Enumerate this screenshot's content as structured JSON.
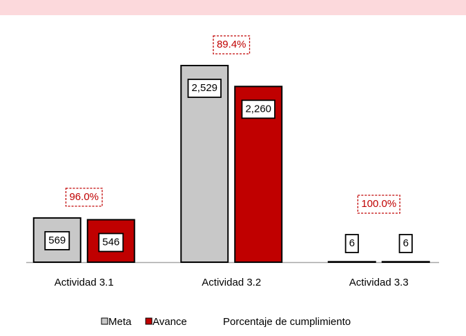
{
  "chart_data": {
    "type": "bar",
    "categories": [
      "Actividad 3.1",
      "Actividad 3.2",
      "Actividad 3.3"
    ],
    "series": [
      {
        "name": "Meta",
        "color": "#c8c8c8",
        "values": [
          569,
          2529,
          6
        ],
        "value_labels": [
          "569",
          "2,529",
          "6"
        ]
      },
      {
        "name": "Avance",
        "color": "#c00000",
        "values": [
          546,
          2260,
          6
        ],
        "value_labels": [
          "546",
          "2,260",
          "6"
        ]
      }
    ],
    "annotations": [
      "96.0%",
      "89.4%",
      "100.0%"
    ],
    "percentage_legend": "Porcentaje de cumplimiento"
  }
}
